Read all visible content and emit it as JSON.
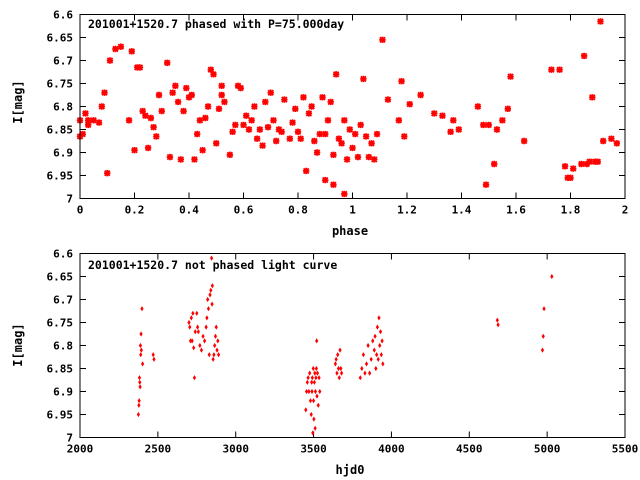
{
  "chart_data": [
    {
      "type": "scatter",
      "title": "201001+1520.7 phased with P=75.000day",
      "xlabel": "phase",
      "ylabel": "I[mag]",
      "xlim": [
        0,
        2
      ],
      "ylim": [
        7.0,
        6.6
      ],
      "y_inverted": true,
      "xticks": [
        0,
        0.2,
        0.4,
        0.6,
        0.8,
        1,
        1.2,
        1.4,
        1.6,
        1.8,
        2
      ],
      "xtick_labels": [
        "0",
        "0.2",
        "0.4",
        "0.6",
        "0.8",
        "1",
        "1.2",
        "1.4",
        "1.6",
        "1.8",
        "2"
      ],
      "yticks": [
        6.6,
        6.65,
        6.7,
        6.75,
        6.8,
        6.85,
        6.9,
        6.95,
        7.0
      ],
      "ytick_labels": [
        "6.6",
        "6.65",
        "6.7",
        "6.75",
        "6.8",
        "6.85",
        "6.9",
        "6.95",
        "7"
      ],
      "grid": false,
      "marker_color": "#ff0000",
      "marker": "star",
      "points": [
        [
          0.0,
          6.83
        ],
        [
          0.0,
          6.865
        ],
        [
          0.01,
          6.86
        ],
        [
          0.02,
          6.815
        ],
        [
          0.03,
          6.84
        ],
        [
          0.03,
          6.83
        ],
        [
          0.05,
          6.83
        ],
        [
          0.07,
          6.835
        ],
        [
          0.08,
          6.8
        ],
        [
          0.09,
          6.77
        ],
        [
          0.1,
          6.945
        ],
        [
          0.11,
          6.7
        ],
        [
          0.13,
          6.675
        ],
        [
          0.15,
          6.67
        ],
        [
          0.18,
          6.83
        ],
        [
          0.19,
          6.68
        ],
        [
          0.2,
          6.895
        ],
        [
          0.21,
          6.715
        ],
        [
          0.22,
          6.715
        ],
        [
          0.23,
          6.81
        ],
        [
          0.24,
          6.82
        ],
        [
          0.25,
          6.89
        ],
        [
          0.26,
          6.825
        ],
        [
          0.27,
          6.845
        ],
        [
          0.28,
          6.865
        ],
        [
          0.29,
          6.775
        ],
        [
          0.3,
          6.81
        ],
        [
          0.32,
          6.705
        ],
        [
          0.33,
          6.91
        ],
        [
          0.34,
          6.77
        ],
        [
          0.35,
          6.755
        ],
        [
          0.36,
          6.79
        ],
        [
          0.37,
          6.915
        ],
        [
          0.38,
          6.81
        ],
        [
          0.39,
          6.76
        ],
        [
          0.4,
          6.78
        ],
        [
          0.41,
          6.775
        ],
        [
          0.42,
          6.915
        ],
        [
          0.43,
          6.86
        ],
        [
          0.44,
          6.83
        ],
        [
          0.45,
          6.895
        ],
        [
          0.46,
          6.825
        ],
        [
          0.47,
          6.8
        ],
        [
          0.48,
          6.72
        ],
        [
          0.49,
          6.73
        ],
        [
          0.5,
          6.88
        ],
        [
          0.51,
          6.805
        ],
        [
          0.52,
          6.755
        ],
        [
          0.52,
          6.775
        ],
        [
          0.53,
          6.79
        ],
        [
          0.55,
          6.905
        ],
        [
          0.56,
          6.855
        ],
        [
          0.57,
          6.84
        ],
        [
          0.58,
          6.755
        ],
        [
          0.59,
          6.76
        ],
        [
          0.6,
          6.84
        ],
        [
          0.61,
          6.82
        ],
        [
          0.62,
          6.85
        ],
        [
          0.63,
          6.83
        ],
        [
          0.64,
          6.8
        ],
        [
          0.65,
          6.87
        ],
        [
          0.66,
          6.85
        ],
        [
          0.67,
          6.885
        ],
        [
          0.68,
          6.79
        ],
        [
          0.69,
          6.845
        ],
        [
          0.7,
          6.77
        ],
        [
          0.71,
          6.83
        ],
        [
          0.72,
          6.875
        ],
        [
          0.73,
          6.85
        ],
        [
          0.74,
          6.855
        ],
        [
          0.75,
          6.785
        ],
        [
          0.77,
          6.87
        ],
        [
          0.78,
          6.835
        ],
        [
          0.79,
          6.805
        ],
        [
          0.8,
          6.855
        ],
        [
          0.81,
          6.87
        ],
        [
          0.82,
          6.78
        ],
        [
          0.83,
          6.94
        ],
        [
          0.84,
          6.815
        ],
        [
          0.85,
          6.8
        ],
        [
          0.86,
          6.875
        ],
        [
          0.87,
          6.9
        ],
        [
          0.88,
          6.86
        ],
        [
          0.89,
          6.78
        ],
        [
          0.9,
          6.96
        ],
        [
          0.9,
          6.86
        ],
        [
          0.91,
          6.83
        ],
        [
          0.92,
          6.79
        ],
        [
          0.93,
          6.97
        ],
        [
          0.93,
          6.905
        ],
        [
          0.94,
          6.73
        ],
        [
          0.95,
          6.87
        ],
        [
          0.96,
          6.88
        ],
        [
          0.97,
          6.83
        ],
        [
          0.97,
          6.99
        ],
        [
          0.98,
          6.915
        ],
        [
          0.99,
          6.85
        ],
        [
          1.0,
          6.89
        ],
        [
          1.01,
          6.86
        ],
        [
          1.02,
          6.91
        ],
        [
          1.03,
          6.84
        ],
        [
          1.04,
          6.74
        ],
        [
          1.05,
          6.865
        ],
        [
          1.06,
          6.91
        ],
        [
          1.07,
          6.88
        ],
        [
          1.08,
          6.915
        ],
        [
          1.09,
          6.86
        ],
        [
          1.11,
          6.655
        ],
        [
          1.13,
          6.785
        ],
        [
          1.17,
          6.83
        ],
        [
          1.18,
          6.745
        ],
        [
          1.19,
          6.865
        ],
        [
          1.21,
          6.795
        ],
        [
          1.25,
          6.775
        ],
        [
          1.3,
          6.815
        ],
        [
          1.33,
          6.82
        ],
        [
          1.36,
          6.855
        ],
        [
          1.37,
          6.83
        ],
        [
          1.39,
          6.85
        ],
        [
          1.46,
          6.8
        ],
        [
          1.48,
          6.84
        ],
        [
          1.49,
          6.97
        ],
        [
          1.5,
          6.84
        ],
        [
          1.52,
          6.925
        ],
        [
          1.53,
          6.85
        ],
        [
          1.55,
          6.83
        ],
        [
          1.57,
          6.805
        ],
        [
          1.58,
          6.735
        ],
        [
          1.63,
          6.875
        ],
        [
          1.73,
          6.72
        ],
        [
          1.76,
          6.72
        ],
        [
          1.78,
          6.93
        ],
        [
          1.79,
          6.955
        ],
        [
          1.8,
          6.955
        ],
        [
          1.81,
          6.935
        ],
        [
          1.84,
          6.925
        ],
        [
          1.85,
          6.69
        ],
        [
          1.86,
          6.925
        ],
        [
          1.87,
          6.92
        ],
        [
          1.88,
          6.78
        ],
        [
          1.89,
          6.92
        ],
        [
          1.9,
          6.92
        ],
        [
          1.91,
          6.615
        ],
        [
          1.92,
          6.875
        ],
        [
          1.95,
          6.87
        ],
        [
          1.97,
          6.88
        ]
      ]
    },
    {
      "type": "scatter",
      "title": "201001+1520.7 not phased light curve",
      "xlabel": "hjd0",
      "ylabel": "I[mag]",
      "xlim": [
        2000,
        5500
      ],
      "ylim": [
        7.0,
        6.6
      ],
      "y_inverted": true,
      "xticks": [
        2000,
        2500,
        3000,
        3500,
        4000,
        4500,
        5000,
        5500
      ],
      "xtick_labels": [
        "2000",
        "2500",
        "3000",
        "3500",
        "4000",
        "4500",
        "5000",
        "5500"
      ],
      "yticks": [
        6.6,
        6.65,
        6.7,
        6.75,
        6.8,
        6.85,
        6.9,
        6.95,
        7.0
      ],
      "ytick_labels": [
        "6.6",
        "6.65",
        "6.7",
        "6.75",
        "6.8",
        "6.85",
        "6.9",
        "6.95",
        "7"
      ],
      "grid": false,
      "marker_color": "#ff0000",
      "marker": "diamond",
      "points": [
        [
          2375,
          6.95
        ],
        [
          2378,
          6.93
        ],
        [
          2380,
          6.92
        ],
        [
          2382,
          6.87
        ],
        [
          2384,
          6.88
        ],
        [
          2386,
          6.89
        ],
        [
          2388,
          6.8
        ],
        [
          2390,
          6.82
        ],
        [
          2392,
          6.775
        ],
        [
          2394,
          6.81
        ],
        [
          2398,
          6.72
        ],
        [
          2402,
          6.84
        ],
        [
          2470,
          6.82
        ],
        [
          2475,
          6.83
        ],
        [
          2700,
          6.75
        ],
        [
          2705,
          6.76
        ],
        [
          2710,
          6.79
        ],
        [
          2715,
          6.74
        ],
        [
          2720,
          6.79
        ],
        [
          2725,
          6.73
        ],
        [
          2730,
          6.805
        ],
        [
          2735,
          6.87
        ],
        [
          2740,
          6.77
        ],
        [
          2750,
          6.73
        ],
        [
          2755,
          6.76
        ],
        [
          2760,
          6.77
        ],
        [
          2770,
          6.8
        ],
        [
          2780,
          6.81
        ],
        [
          2790,
          6.78
        ],
        [
          2800,
          6.79
        ],
        [
          2810,
          6.76
        ],
        [
          2815,
          6.74
        ],
        [
          2820,
          6.7
        ],
        [
          2825,
          6.72
        ],
        [
          2830,
          6.82
        ],
        [
          2835,
          6.69
        ],
        [
          2840,
          6.68
        ],
        [
          2845,
          6.61
        ],
        [
          2848,
          6.71
        ],
        [
          2850,
          6.67
        ],
        [
          2855,
          6.83
        ],
        [
          2860,
          6.82
        ],
        [
          2865,
          6.8
        ],
        [
          2870,
          6.78
        ],
        [
          2875,
          6.76
        ],
        [
          2880,
          6.81
        ],
        [
          2885,
          6.79
        ],
        [
          2890,
          6.82
        ],
        [
          3450,
          6.94
        ],
        [
          3455,
          6.9
        ],
        [
          3460,
          6.88
        ],
        [
          3465,
          6.87
        ],
        [
          3470,
          6.9
        ],
        [
          3475,
          6.86
        ],
        [
          3480,
          6.92
        ],
        [
          3485,
          6.95
        ],
        [
          3488,
          6.88
        ],
        [
          3490,
          6.9
        ],
        [
          3492,
          6.87
        ],
        [
          3495,
          6.99
        ],
        [
          3498,
          6.85
        ],
        [
          3500,
          6.92
        ],
        [
          3502,
          6.96
        ],
        [
          3505,
          6.88
        ],
        [
          3508,
          6.86
        ],
        [
          3510,
          6.98
        ],
        [
          3512,
          6.9
        ],
        [
          3515,
          6.87
        ],
        [
          3518,
          6.85
        ],
        [
          3520,
          6.79
        ],
        [
          3522,
          6.91
        ],
        [
          3525,
          6.86
        ],
        [
          3530,
          6.93
        ],
        [
          3535,
          6.87
        ],
        [
          3540,
          6.9
        ],
        [
          3640,
          6.84
        ],
        [
          3645,
          6.83
        ],
        [
          3650,
          6.86
        ],
        [
          3655,
          6.82
        ],
        [
          3660,
          6.85
        ],
        [
          3665,
          6.87
        ],
        [
          3670,
          6.81
        ],
        [
          3675,
          6.85
        ],
        [
          3680,
          6.86
        ],
        [
          3800,
          6.87
        ],
        [
          3810,
          6.85
        ],
        [
          3820,
          6.82
        ],
        [
          3830,
          6.86
        ],
        [
          3840,
          6.84
        ],
        [
          3850,
          6.8
        ],
        [
          3860,
          6.86
        ],
        [
          3870,
          6.83
        ],
        [
          3880,
          6.79
        ],
        [
          3890,
          6.81
        ],
        [
          3895,
          6.78
        ],
        [
          3900,
          6.85
        ],
        [
          3905,
          6.82
        ],
        [
          3910,
          6.76
        ],
        [
          3915,
          6.83
        ],
        [
          3920,
          6.74
        ],
        [
          3925,
          6.8
        ],
        [
          3930,
          6.77
        ],
        [
          3935,
          6.82
        ],
        [
          3940,
          6.79
        ],
        [
          3945,
          6.84
        ],
        [
          4680,
          6.745
        ],
        [
          4685,
          6.755
        ],
        [
          4970,
          6.81
        ],
        [
          4975,
          6.78
        ],
        [
          4980,
          6.72
        ],
        [
          5030,
          6.65
        ]
      ]
    }
  ]
}
